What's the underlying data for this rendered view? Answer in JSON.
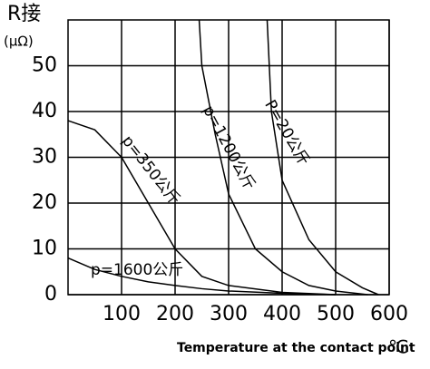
{
  "chart_data": {
    "type": "line",
    "ylabel": "R接",
    "yunit": "(μΩ)",
    "xlabel": "Temperature at the contact point",
    "xunit": "℃",
    "xlim": [
      0,
      600
    ],
    "xticks": [
      100,
      200,
      300,
      400,
      500,
      600
    ],
    "ylim": [
      0,
      60
    ],
    "yticks": [
      0,
      10,
      20,
      30,
      40,
      50
    ],
    "grid": true,
    "series": [
      {
        "name": "p=1600公斤",
        "color": "#000000",
        "x": [
          0,
          50,
          100,
          150,
          200,
          250,
          300,
          400,
          500
        ],
        "values": [
          8,
          5.5,
          4,
          2.8,
          2,
          1.3,
          0.8,
          0.3,
          0
        ]
      },
      {
        "name": "p=350公斤",
        "color": "#000000",
        "x": [
          0,
          50,
          100,
          150,
          200,
          250,
          300,
          400,
          500
        ],
        "values": [
          38,
          36,
          30,
          20,
          10,
          4,
          2,
          0.5,
          0
        ]
      },
      {
        "name": "p=1200公斤",
        "color": "#000000",
        "x": [
          245,
          250,
          275,
          300,
          350,
          400,
          450,
          500,
          560
        ],
        "values": [
          60,
          50,
          35,
          22,
          10,
          5,
          2,
          0.8,
          0
        ]
      },
      {
        "name": "P=20公斤",
        "color": "#000000",
        "x": [
          372,
          380,
          400,
          450,
          500,
          550,
          580
        ],
        "values": [
          60,
          40,
          25,
          12,
          5,
          1.5,
          0
        ]
      }
    ]
  }
}
